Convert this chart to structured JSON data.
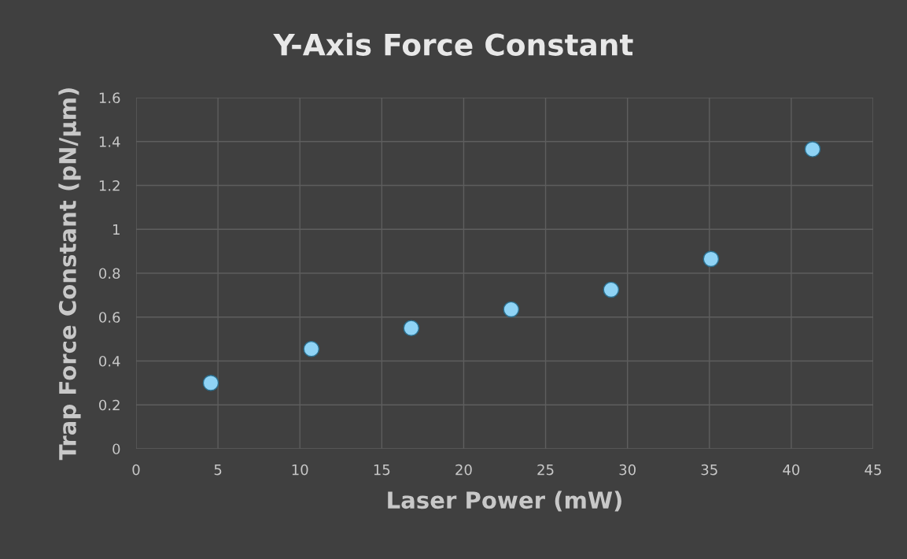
{
  "chart_data": {
    "type": "scatter",
    "title": "Y-Axis Force Constant",
    "xlabel": "Laser Power (mW)",
    "ylabel": "Trap Force Constant (pN/µm)",
    "x": [
      4.56,
      10.7,
      16.8,
      22.9,
      29.0,
      35.1,
      41.3
    ],
    "series": [
      {
        "color": "#8fd3f5",
        "values": [
          0.3,
          0.455,
          0.55,
          0.635,
          0.725,
          0.865,
          1.365
        ]
      }
    ],
    "xlim": [
      0,
      45
    ],
    "xticks": [
      0,
      5,
      10,
      15,
      20,
      25,
      30,
      35,
      40,
      45
    ],
    "ylim": [
      0,
      1.6
    ],
    "yticks": [
      {
        "value": 0,
        "label": "0"
      },
      0.2,
      0.4,
      0.6,
      0.8,
      {
        "value": 1,
        "label": "1"
      },
      1.2,
      1.4,
      1.6
    ],
    "grid": true,
    "marker": "circle"
  }
}
